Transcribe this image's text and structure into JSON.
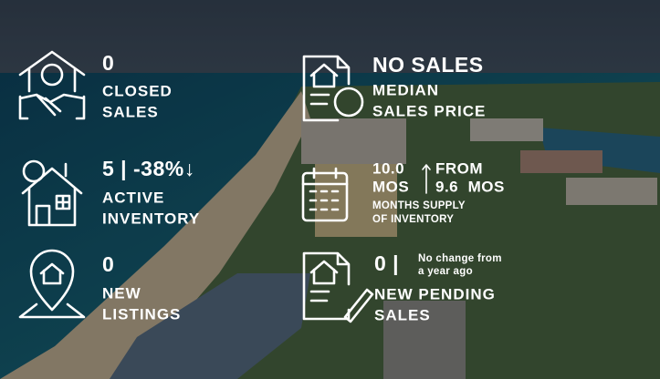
{
  "stats": [
    {
      "value": "0",
      "label": [
        "CLOSED",
        "SALES"
      ]
    },
    {
      "value": "5 | -38%↓",
      "label": [
        "ACTIVE",
        "INVENTORY"
      ]
    },
    {
      "value": "0",
      "label": [
        "NEW",
        "LISTINGS"
      ]
    },
    {
      "value": "NO SALES",
      "label": [
        "MEDIAN",
        "SALES PRICE"
      ]
    },
    {
      "value": [
        "10.0",
        "MOS"
      ],
      "change": [
        "FROM",
        "9.6  MOS"
      ],
      "label": [
        "MONTHS SUPPLY",
        "OF INVENTORY"
      ]
    },
    {
      "value": "0 |",
      "note": [
        "No change from",
        "a year ago"
      ],
      "label": [
        "NEW PENDING",
        "SALES"
      ]
    }
  ]
}
